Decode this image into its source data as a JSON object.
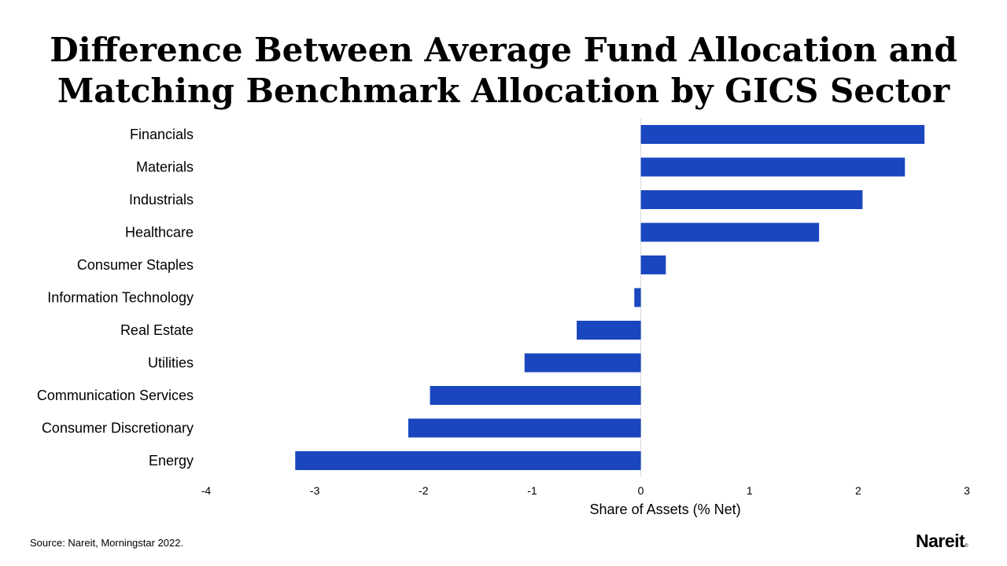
{
  "title_line1": "Difference Between Average Fund Allocation and",
  "title_line2": "Matching Benchmark Allocation by GICS Sector",
  "source": "Source: Nareit, Morningstar 2022.",
  "logo_text": "Nareit",
  "colors": {
    "bar": "#1a47bf",
    "axis": "#d9d9d9"
  },
  "chart_data": {
    "type": "bar",
    "orientation": "horizontal",
    "categories": [
      "Financials",
      "Materials",
      "Industrials",
      "Healthcare",
      "Consumer Staples",
      "Information Technology",
      "Real Estate",
      "Utilities",
      "Communication Services",
      "Consumer Discretionary",
      "Energy"
    ],
    "values": [
      2.61,
      2.43,
      2.04,
      1.64,
      0.23,
      -0.06,
      -0.59,
      -1.07,
      -1.94,
      -2.14,
      -3.18
    ],
    "xlabel": "Share of Assets (% Net)",
    "ylabel": "",
    "xlim": [
      -4,
      3
    ],
    "xticks": [
      -4,
      -3,
      -2,
      -1,
      0,
      1,
      2,
      3
    ],
    "grid": false,
    "legend": "none"
  }
}
